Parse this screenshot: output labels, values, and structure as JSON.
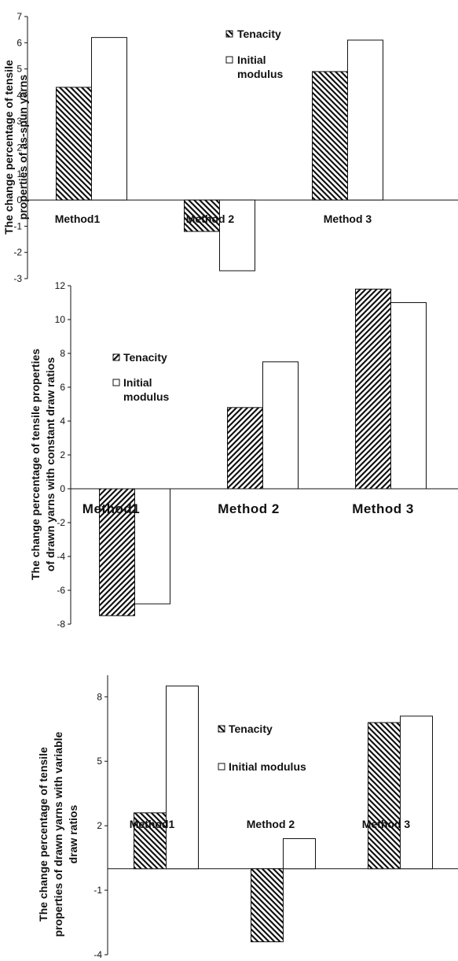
{
  "chart_data": [
    {
      "type": "bar",
      "ylabel": "The change percentage of tensile properties of  as-spun yarns",
      "ylabel_lines": [
        "The change percentage of tensile",
        "properties of  as-spun yarns"
      ],
      "categories": [
        "Method1",
        "Method 2",
        "Method 3"
      ],
      "series": [
        {
          "name": "Tenacity",
          "values": [
            4.3,
            -1.2,
            4.9
          ],
          "pattern": "hatch-down"
        },
        {
          "name": "Initial modulus",
          "values": [
            6.2,
            -2.7,
            6.1
          ],
          "pattern": "none"
        }
      ],
      "legend_lines": [
        [
          "Tenacity"
        ],
        [
          "Initial",
          "modulus"
        ]
      ],
      "ylim": [
        -3,
        7
      ],
      "yticks": [
        -3,
        -2,
        -1,
        0,
        1,
        2,
        3,
        4,
        5,
        6,
        7
      ],
      "legend_position": "top-center"
    },
    {
      "type": "bar",
      "ylabel": "The change percentage of tensile properties of drawn yarns with constant draw ratios",
      "ylabel_lines": [
        "The change percentage of tensile properties",
        "of drawn yarns with constant draw ratios"
      ],
      "categories": [
        "Method1",
        "Method 2",
        "Method 3"
      ],
      "series": [
        {
          "name": "Tenacity",
          "values": [
            -7.5,
            4.8,
            11.8
          ],
          "pattern": "hatch-up"
        },
        {
          "name": "Initial modulus",
          "values": [
            -6.8,
            7.5,
            11.0
          ],
          "pattern": "none"
        }
      ],
      "legend_lines": [
        [
          "Tenacity"
        ],
        [
          "Initial",
          "modulus"
        ]
      ],
      "ylim": [
        -8,
        12
      ],
      "yticks": [
        -8,
        -6,
        -4,
        -2,
        0,
        2,
        4,
        6,
        8,
        10,
        12
      ],
      "legend_position": "top-left"
    },
    {
      "type": "bar",
      "ylabel": "The change percentage of tensile properties of drawn yarns with variable draw ratios",
      "ylabel_lines": [
        "The change percentage of tensile",
        "properties of drawn yarns with variable",
        "draw ratios"
      ],
      "categories": [
        "Method1",
        "Method 2",
        "Method 3"
      ],
      "series": [
        {
          "name": "Tenacity",
          "values": [
            2.6,
            -3.4,
            6.8
          ],
          "pattern": "hatch-down"
        },
        {
          "name": "Initial modulus",
          "values": [
            8.5,
            1.4,
            7.1
          ],
          "pattern": "none"
        }
      ],
      "legend_lines": [
        [
          "Tenacity"
        ],
        [
          "Initial modulus"
        ]
      ],
      "ylim": [
        -4,
        9
      ],
      "yticks": [
        -4,
        -1,
        2,
        5,
        8
      ],
      "legend_position": "top-center"
    }
  ]
}
